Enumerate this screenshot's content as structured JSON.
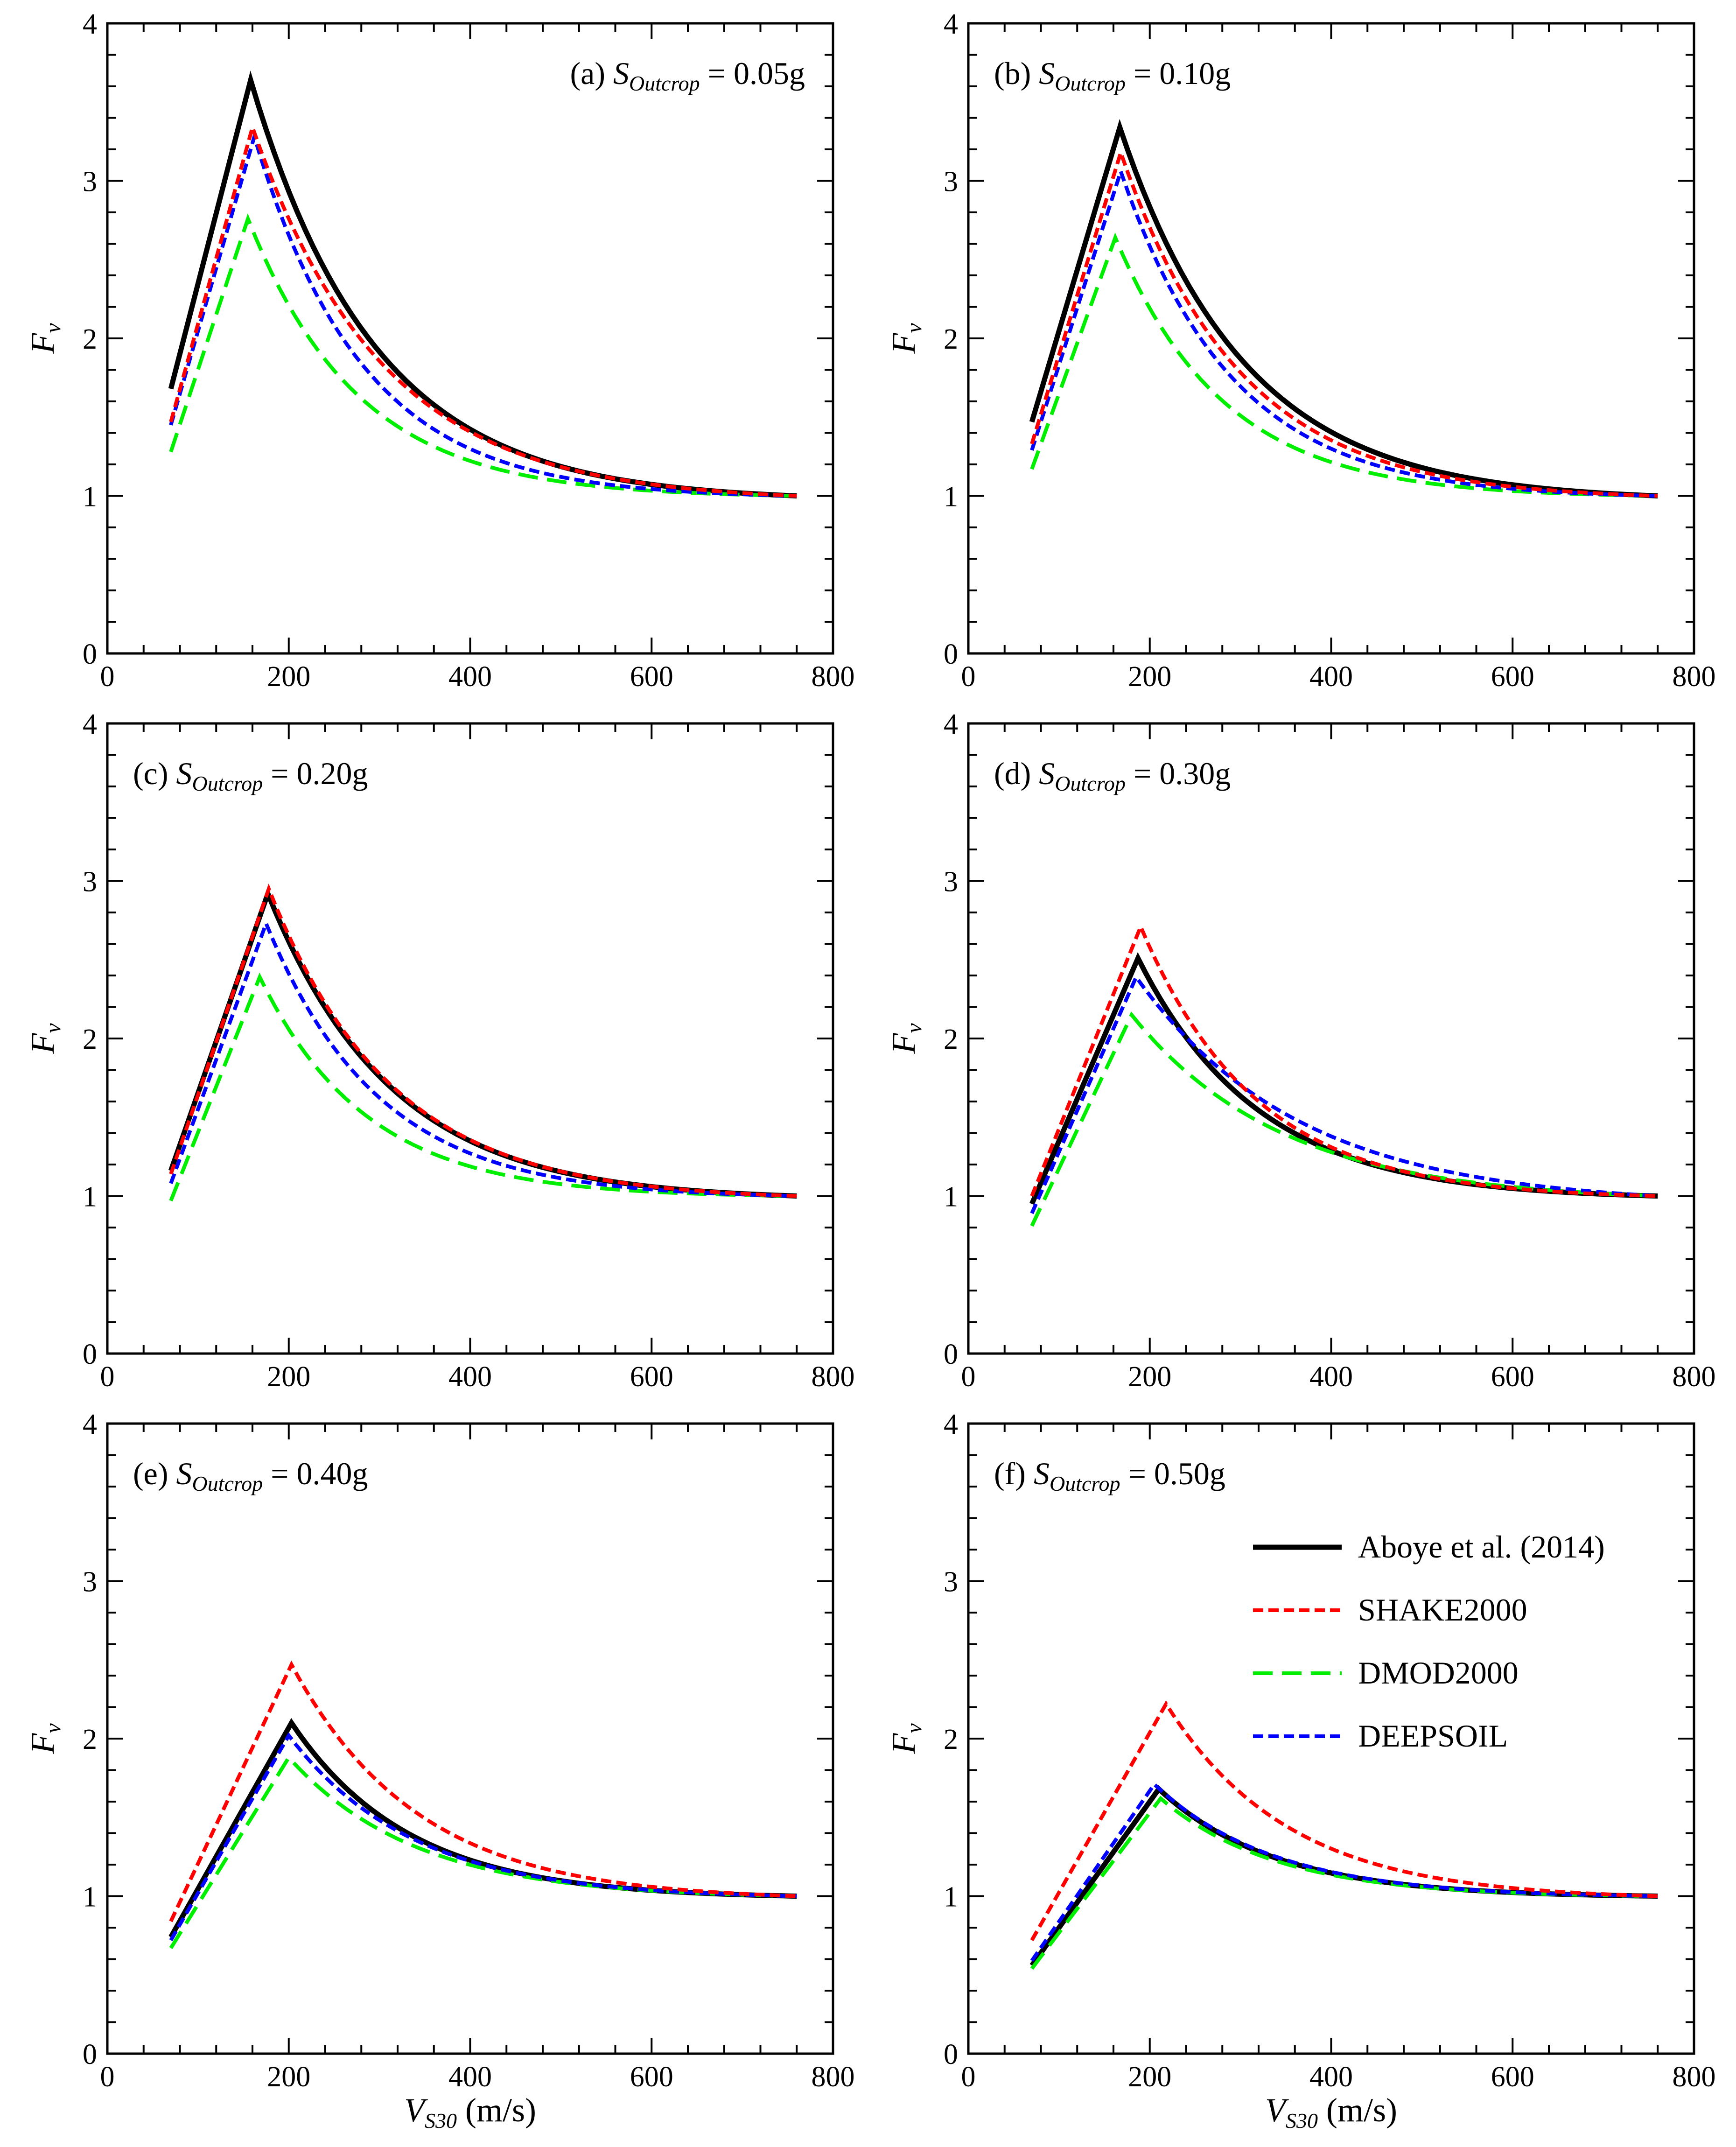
{
  "chart_data": {
    "type": "line",
    "series_styles": [
      {
        "key": "aboye",
        "name": "Aboye et al. (2014)",
        "color": "#000000",
        "dash": "solid"
      },
      {
        "key": "shake",
        "name": "SHAKE2000",
        "color": "#ff0000",
        "dash": "short"
      },
      {
        "key": "dmod",
        "name": "DMOD2000",
        "color": "#00ee00",
        "dash": "long"
      },
      {
        "key": "deepsoil",
        "name": "DEEPSOIL",
        "color": "#0000ff",
        "dash": "short"
      }
    ],
    "xlim": [
      0,
      800
    ],
    "ylim": [
      0,
      4
    ],
    "x_ticks": [
      "0",
      "200",
      "400",
      "600",
      "800"
    ],
    "y_ticks": [
      "0",
      "1",
      "2",
      "3",
      "4"
    ],
    "ylabel": {
      "main": "F",
      "sub": "v"
    },
    "xlabel": {
      "main": "V",
      "sub": "S30",
      "unit": " (m/s)"
    },
    "panels": [
      {
        "label": "(a)",
        "title_var": "S",
        "title_sub": "Outcrop",
        "title_value": " = 0.05g",
        "series": {
          "aboye": {
            "x0": 70,
            "y0": 1.68,
            "xp": 158,
            "yp": 3.64,
            "k": 4.4
          },
          "shake": {
            "x0": 70,
            "y0": 1.47,
            "xp": 160,
            "yp": 3.34,
            "k": 4.2
          },
          "dmod": {
            "x0": 70,
            "y0": 1.28,
            "xp": 155,
            "yp": 2.76,
            "k": 5.0
          },
          "deepsoil": {
            "x0": 70,
            "y0": 1.45,
            "xp": 162,
            "yp": 3.28,
            "k": 5.0
          }
        }
      },
      {
        "label": "(b)",
        "title_var": "S",
        "title_sub": "Outcrop",
        "title_value": " = 0.10g",
        "series": {
          "aboye": {
            "x0": 70,
            "y0": 1.47,
            "xp": 167,
            "yp": 3.34,
            "k": 4.3
          },
          "shake": {
            "x0": 70,
            "y0": 1.33,
            "xp": 168,
            "yp": 3.18,
            "k": 4.5
          },
          "dmod": {
            "x0": 70,
            "y0": 1.17,
            "xp": 162,
            "yp": 2.64,
            "k": 5.0
          },
          "deepsoil": {
            "x0": 70,
            "y0": 1.29,
            "xp": 168,
            "yp": 3.06,
            "k": 4.8
          }
        }
      },
      {
        "label": "(c)",
        "title_var": "S",
        "title_sub": "Outcrop",
        "title_value": " = 0.20g",
        "series": {
          "aboye": {
            "x0": 70,
            "y0": 1.16,
            "xp": 177,
            "yp": 2.92,
            "k": 4.3
          },
          "shake": {
            "x0": 70,
            "y0": 1.14,
            "xp": 178,
            "yp": 2.95,
            "k": 4.3
          },
          "dmod": {
            "x0": 70,
            "y0": 0.97,
            "xp": 168,
            "yp": 2.39,
            "k": 5.0
          },
          "deepsoil": {
            "x0": 70,
            "y0": 1.08,
            "xp": 175,
            "yp": 2.73,
            "k": 4.7
          }
        }
      },
      {
        "label": "(d)",
        "title_var": "S",
        "title_sub": "Outcrop",
        "title_value": " = 0.30g",
        "series": {
          "aboye": {
            "x0": 70,
            "y0": 0.95,
            "xp": 187,
            "yp": 2.51,
            "k": 4.3
          },
          "shake": {
            "x0": 70,
            "y0": 1.0,
            "xp": 190,
            "yp": 2.71,
            "k": 4.5
          },
          "dmod": {
            "x0": 70,
            "y0": 0.81,
            "xp": 180,
            "yp": 2.15,
            "k": 3.5
          },
          "deepsoil": {
            "x0": 70,
            "y0": 0.89,
            "xp": 185,
            "yp": 2.39,
            "k": 3.2
          }
        }
      },
      {
        "label": "(e)",
        "title_var": "S",
        "title_sub": "Outcrop",
        "title_value": " = 0.40g",
        "series": {
          "aboye": {
            "x0": 70,
            "y0": 0.74,
            "xp": 203,
            "yp": 2.1,
            "k": 4.3
          },
          "shake": {
            "x0": 70,
            "y0": 0.84,
            "xp": 203,
            "yp": 2.47,
            "k": 4.0
          },
          "dmod": {
            "x0": 70,
            "y0": 0.67,
            "xp": 200,
            "yp": 1.88,
            "k": 4.0
          },
          "deepsoil": {
            "x0": 70,
            "y0": 0.72,
            "xp": 200,
            "yp": 2.02,
            "k": 4.1
          }
        }
      },
      {
        "label": "(f)",
        "title_var": "S",
        "title_sub": "Outcrop",
        "title_value": " = 0.50g",
        "series": {
          "aboye": {
            "x0": 70,
            "y0": 0.56,
            "xp": 210,
            "yp": 1.68,
            "k": 4.3
          },
          "shake": {
            "x0": 70,
            "y0": 0.72,
            "xp": 218,
            "yp": 2.22,
            "k": 4.0
          },
          "dmod": {
            "x0": 70,
            "y0": 0.54,
            "xp": 212,
            "yp": 1.62,
            "k": 4.3
          },
          "deepsoil": {
            "x0": 70,
            "y0": 0.59,
            "xp": 205,
            "yp": 1.71,
            "k": 4.2
          }
        }
      }
    ],
    "legend": {
      "location": "panel (f), upper-right"
    }
  }
}
